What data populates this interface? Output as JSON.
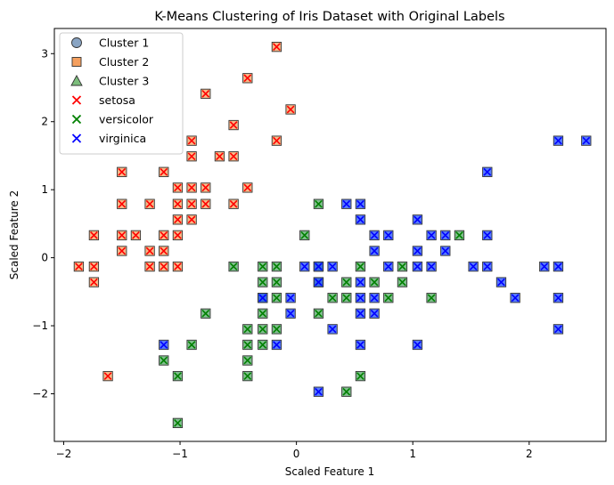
{
  "chart_data": {
    "type": "scatter",
    "title": "K-Means Clustering of Iris Dataset with Original Labels",
    "xlabel": "Scaled Feature 1",
    "ylabel": "Scaled Feature 2",
    "xlim": [
      -2.08,
      2.66
    ],
    "ylim": [
      -2.7,
      3.37
    ],
    "xticks": [
      -2,
      -1,
      0,
      1,
      2
    ],
    "yticks": [
      -2,
      -1,
      0,
      1,
      2,
      3
    ],
    "grid": false,
    "legend_position": "top-left",
    "series": [
      {
        "name": "setosa",
        "cluster": "Cluster 2",
        "color": "#ff0000",
        "cluster_color": "#f5a05f",
        "points": [
          [
            -1.87,
            -0.13
          ],
          [
            -1.74,
            0.33
          ],
          [
            -1.74,
            -0.13
          ],
          [
            -1.74,
            -0.36
          ],
          [
            -1.62,
            -1.74
          ],
          [
            -1.5,
            1.26
          ],
          [
            -1.5,
            0.79
          ],
          [
            -1.5,
            0.33
          ],
          [
            -1.5,
            0.1
          ],
          [
            -1.38,
            0.33
          ],
          [
            -1.26,
            0.79
          ],
          [
            -1.26,
            0.1
          ],
          [
            -1.26,
            -0.13
          ],
          [
            -1.14,
            1.26
          ],
          [
            -1.14,
            0.33
          ],
          [
            -1.14,
            0.1
          ],
          [
            -1.14,
            -0.13
          ],
          [
            -1.02,
            1.03
          ],
          [
            -1.02,
            0.79
          ],
          [
            -1.02,
            0.56
          ],
          [
            -1.02,
            0.33
          ],
          [
            -1.02,
            -0.13
          ],
          [
            -0.9,
            1.72
          ],
          [
            -0.9,
            1.49
          ],
          [
            -0.9,
            1.03
          ],
          [
            -0.9,
            0.79
          ],
          [
            -0.9,
            0.56
          ],
          [
            -0.78,
            2.41
          ],
          [
            -0.78,
            1.03
          ],
          [
            -0.78,
            0.79
          ],
          [
            -0.66,
            1.49
          ],
          [
            -0.54,
            1.95
          ],
          [
            -0.54,
            1.49
          ],
          [
            -0.54,
            0.79
          ],
          [
            -0.42,
            2.64
          ],
          [
            -0.42,
            1.03
          ],
          [
            -0.17,
            3.1
          ],
          [
            -0.17,
            1.72
          ],
          [
            -0.05,
            2.18
          ]
        ]
      },
      {
        "name": "versicolor",
        "cluster": "Cluster 3",
        "color": "#008000",
        "cluster_color": "#55a868",
        "points": [
          [
            -1.14,
            -1.51
          ],
          [
            -1.02,
            -1.74
          ],
          [
            -1.02,
            -2.43
          ],
          [
            -0.9,
            -1.28
          ],
          [
            -0.78,
            -0.82
          ],
          [
            -0.54,
            -0.13
          ],
          [
            -0.42,
            -1.05
          ],
          [
            -0.42,
            -1.28
          ],
          [
            -0.42,
            -1.51
          ],
          [
            -0.42,
            -1.74
          ],
          [
            -0.29,
            -0.13
          ],
          [
            -0.29,
            -0.36
          ],
          [
            -0.29,
            -0.59
          ],
          [
            -0.29,
            -0.82
          ],
          [
            -0.29,
            -1.05
          ],
          [
            -0.29,
            -1.28
          ],
          [
            -0.17,
            -0.13
          ],
          [
            -0.17,
            -0.36
          ],
          [
            -0.17,
            -0.59
          ],
          [
            -0.17,
            -1.05
          ],
          [
            0.07,
            0.33
          ],
          [
            0.19,
            0.79
          ],
          [
            0.19,
            -0.13
          ],
          [
            0.19,
            -0.36
          ],
          [
            0.19,
            -0.82
          ],
          [
            0.31,
            -0.59
          ],
          [
            0.43,
            -0.36
          ],
          [
            0.43,
            -0.59
          ],
          [
            0.43,
            -1.97
          ],
          [
            0.55,
            -0.13
          ],
          [
            0.55,
            -1.74
          ],
          [
            0.67,
            -0.36
          ],
          [
            0.79,
            -0.59
          ],
          [
            0.91,
            -0.13
          ],
          [
            0.91,
            -0.36
          ],
          [
            1.16,
            -0.59
          ],
          [
            1.4,
            0.33
          ]
        ]
      },
      {
        "name": "virginica",
        "cluster": "Cluster 1",
        "color": "#0000ff",
        "cluster_color": "#1f4fff",
        "points": [
          [
            -1.14,
            -1.28
          ],
          [
            -0.29,
            -0.59
          ],
          [
            -0.17,
            -1.28
          ],
          [
            -0.05,
            -0.82
          ],
          [
            -0.05,
            -0.59
          ],
          [
            0.07,
            -0.13
          ],
          [
            0.19,
            -0.13
          ],
          [
            0.19,
            -0.36
          ],
          [
            0.19,
            -1.97
          ],
          [
            0.31,
            -0.13
          ],
          [
            0.31,
            -1.05
          ],
          [
            0.43,
            0.79
          ],
          [
            0.55,
            0.79
          ],
          [
            0.55,
            0.56
          ],
          [
            0.55,
            -0.36
          ],
          [
            0.55,
            -0.59
          ],
          [
            0.55,
            -0.82
          ],
          [
            0.55,
            -1.28
          ],
          [
            0.67,
            0.33
          ],
          [
            0.67,
            0.1
          ],
          [
            0.67,
            -0.59
          ],
          [
            0.67,
            -0.82
          ],
          [
            0.79,
            0.33
          ],
          [
            0.79,
            -0.13
          ],
          [
            1.04,
            0.56
          ],
          [
            1.04,
            0.1
          ],
          [
            1.04,
            -0.13
          ],
          [
            1.04,
            -1.28
          ],
          [
            1.16,
            0.33
          ],
          [
            1.16,
            -0.13
          ],
          [
            1.28,
            0.33
          ],
          [
            1.28,
            0.1
          ],
          [
            1.52,
            -0.13
          ],
          [
            1.64,
            1.26
          ],
          [
            1.64,
            0.33
          ],
          [
            1.64,
            -0.13
          ],
          [
            1.76,
            -0.36
          ],
          [
            1.88,
            -0.59
          ],
          [
            2.13,
            -0.13
          ],
          [
            2.25,
            1.72
          ],
          [
            2.25,
            -0.13
          ],
          [
            2.25,
            -0.59
          ],
          [
            2.25,
            -1.05
          ],
          [
            2.49,
            1.72
          ]
        ]
      }
    ],
    "legend": [
      {
        "label": "Cluster 1",
        "marker": "circle",
        "color": "#6b8db4"
      },
      {
        "label": "Cluster 2",
        "marker": "square",
        "color": "#f5a05f"
      },
      {
        "label": "Cluster 3",
        "marker": "triangle",
        "color": "#7cbd7c"
      },
      {
        "label": "setosa",
        "marker": "x",
        "color": "#ff0000"
      },
      {
        "label": "versicolor",
        "marker": "x",
        "color": "#008000"
      },
      {
        "label": "virginica",
        "marker": "x",
        "color": "#0000ff"
      }
    ]
  }
}
